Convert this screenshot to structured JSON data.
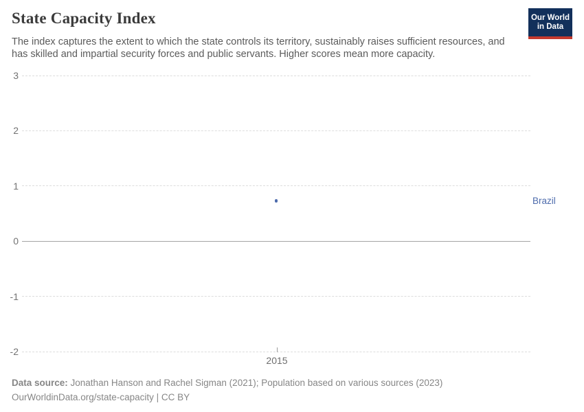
{
  "header": {
    "title": "State Capacity Index",
    "subtitle": "The index captures the extent to which the state controls its territory, sustainably raises sufficient resources, and has skilled and impartial security forces and public servants. Higher scores mean more capacity."
  },
  "logo": {
    "line1": "Our World",
    "line2": "in Data",
    "bg_color": "#12305b",
    "bar_color": "#c43a2e"
  },
  "chart_data": {
    "type": "line",
    "title": "State Capacity Index",
    "xlabel": "",
    "ylabel": "",
    "x": [
      2015
    ],
    "series": [
      {
        "name": "Brazil",
        "color": "#4d6bac",
        "values": [
          0.73
        ]
      }
    ],
    "xticks": [
      2015
    ],
    "yticks": [
      -2,
      -1,
      0,
      1,
      2,
      3
    ],
    "ylim": [
      -2,
      3
    ],
    "grid": "horizontal dashed gridlines, solid zero line",
    "legend_position": "right of last point, entity label"
  },
  "footer": {
    "datasource_label": "Data source:",
    "datasource_text": " Jonathan Hanson and Rachel Sigman (2021); Population based on various sources (2023)",
    "citation_url": "OurWorldinData.org/state-capacity",
    "citation_separator": " | ",
    "citation_license": "CC BY"
  }
}
